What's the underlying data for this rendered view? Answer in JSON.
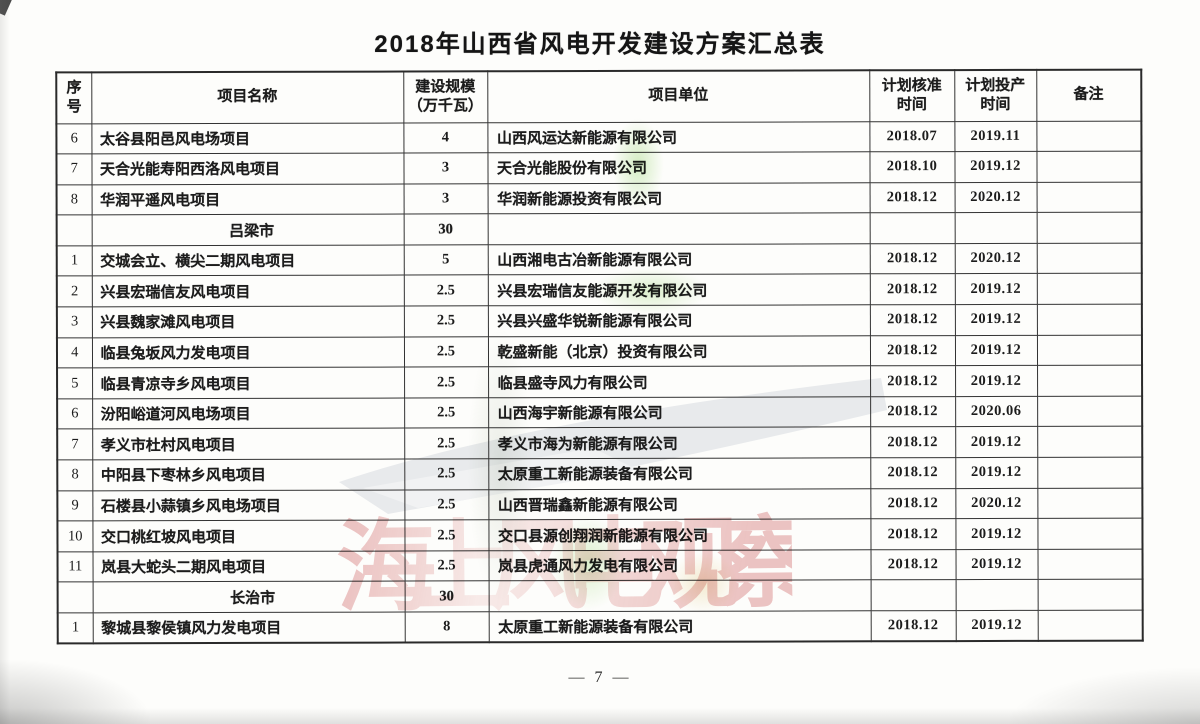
{
  "page": {
    "title": "2018年山西省风电开发建设方案汇总表",
    "footer_page_number": "— 7 —"
  },
  "table": {
    "headers": [
      {
        "l1": "序",
        "l2": "号"
      },
      {
        "l1": "项目名称"
      },
      {
        "l1": "建设规模",
        "l2": "（万千瓦）"
      },
      {
        "l1": "项目单位"
      },
      {
        "l1": "计划核准",
        "l2": "时间"
      },
      {
        "l1": "计划投产",
        "l2": "时间"
      },
      {
        "l1": "备注"
      }
    ],
    "rows": [
      {
        "no": "6",
        "name": "太谷县阳邑风电场项目",
        "scale": "4",
        "company": "山西风运达新能源有限公司",
        "approval": "2018.07",
        "production": "2019.11",
        "remark": ""
      },
      {
        "no": "7",
        "name": "天合光能寿阳西洛风电项目",
        "scale": "3",
        "company": "天合光能股份有限公司",
        "approval": "2018.10",
        "production": "2019.12",
        "remark": ""
      },
      {
        "no": "8",
        "name": "华润平遥风电项目",
        "scale": "3",
        "company": "华润新能源投资有限公司",
        "approval": "2018.12",
        "production": "2020.12",
        "remark": ""
      },
      {
        "section": "吕梁市",
        "scale": "30"
      },
      {
        "no": "1",
        "name": "交城会立、横尖二期风电项目",
        "scale": "5",
        "company": "山西湘电古冶新能源有限公司",
        "approval": "2018.12",
        "production": "2020.12",
        "remark": ""
      },
      {
        "no": "2",
        "name": "兴县宏瑞信友风电项目",
        "scale": "2.5",
        "company": "兴县宏瑞信友能源开发有限公司",
        "approval": "2018.12",
        "production": "2019.12",
        "remark": ""
      },
      {
        "no": "3",
        "name": "兴县魏家滩风电项目",
        "scale": "2.5",
        "company": "兴县兴盛华锐新能源有限公司",
        "approval": "2018.12",
        "production": "2019.12",
        "remark": ""
      },
      {
        "no": "4",
        "name": "临县兔坂风力发电项目",
        "scale": "2.5",
        "company": "乾盛新能（北京）投资有限公司",
        "approval": "2018.12",
        "production": "2019.12",
        "remark": ""
      },
      {
        "no": "5",
        "name": "临县青凉寺乡风电项目",
        "scale": "2.5",
        "company": "临县盛寺风力有限公司",
        "approval": "2018.12",
        "production": "2019.12",
        "remark": ""
      },
      {
        "no": "6",
        "name": "汾阳峪道河风电场项目",
        "scale": "2.5",
        "company": "山西海宇新能源有限公司",
        "approval": "2018.12",
        "production": "2020.06",
        "remark": ""
      },
      {
        "no": "7",
        "name": "孝义市杜村风电项目",
        "scale": "2.5",
        "company": "孝义市海为新能源有限公司",
        "approval": "2018.12",
        "production": "2019.12",
        "remark": ""
      },
      {
        "no": "8",
        "name": "中阳县下枣林乡风电项目",
        "scale": "2.5",
        "company": "太原重工新能源装备有限公司",
        "approval": "2018.12",
        "production": "2019.12",
        "remark": ""
      },
      {
        "no": "9",
        "name": "石楼县小蒜镇乡风电场项目",
        "scale": "2.5",
        "company": "山西晋瑞鑫新能源有限公司",
        "approval": "2018.12",
        "production": "2020.12",
        "remark": ""
      },
      {
        "no": "10",
        "name": "交口桃红坡风电项目",
        "scale": "2.5",
        "company": "交口县源创翔润新能源有限公司",
        "approval": "2018.12",
        "production": "2019.12",
        "remark": ""
      },
      {
        "no": "11",
        "name": "岚县大蛇头二期风电项目",
        "scale": "2.5",
        "company": "岚县虎通风力发电有限公司",
        "approval": "2018.12",
        "production": "2019.12",
        "remark": ""
      },
      {
        "section": "长治市",
        "scale": "30"
      },
      {
        "no": "1",
        "name": "黎城县黎侯镇风力发电项目",
        "scale": "8",
        "company": "太原重工新能源装备有限公司",
        "approval": "2018.12",
        "production": "2019.12",
        "remark": ""
      }
    ]
  },
  "watermark": {
    "text": "海上风电观察",
    "text_color": "#c94b4b",
    "swoosh_color": "#e8eaec",
    "tint_green": "#addd8e",
    "tint_yellow": "#e2c882"
  }
}
